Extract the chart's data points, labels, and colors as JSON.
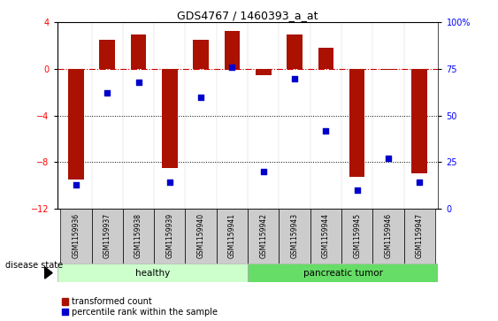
{
  "title": "GDS4767 / 1460393_a_at",
  "samples": [
    "GSM1159936",
    "GSM1159937",
    "GSM1159938",
    "GSM1159939",
    "GSM1159940",
    "GSM1159941",
    "GSM1159942",
    "GSM1159943",
    "GSM1159944",
    "GSM1159945",
    "GSM1159946",
    "GSM1159947"
  ],
  "bar_values": [
    -9.5,
    2.5,
    3.0,
    -8.5,
    2.5,
    3.3,
    -0.5,
    3.0,
    1.8,
    -9.3,
    -0.1,
    -9.0
  ],
  "dot_pct": [
    13,
    62,
    68,
    14,
    60,
    76,
    20,
    70,
    42,
    10,
    27,
    14
  ],
  "bar_color": "#aa1100",
  "dot_color": "#0000cc",
  "dashed_line_color": "#cc0000",
  "dotted_line_color": "#000000",
  "ylim_left": [
    -12,
    4
  ],
  "ylim_right": [
    0,
    100
  ],
  "yticks_left": [
    4,
    0,
    -4,
    -8,
    -12
  ],
  "yticks_right": [
    100,
    75,
    50,
    25,
    0
  ],
  "healthy_count": 6,
  "tumor_count": 6,
  "healthy_label": "healthy",
  "tumor_label": "pancreatic tumor",
  "healthy_color": "#ccffcc",
  "tumor_color": "#66dd66",
  "label_bar": "transformed count",
  "label_dot": "percentile rank within the sample",
  "disease_state_label": "disease state",
  "bar_width": 0.5,
  "background_color": "#ffffff",
  "sample_box_color": "#cccccc"
}
